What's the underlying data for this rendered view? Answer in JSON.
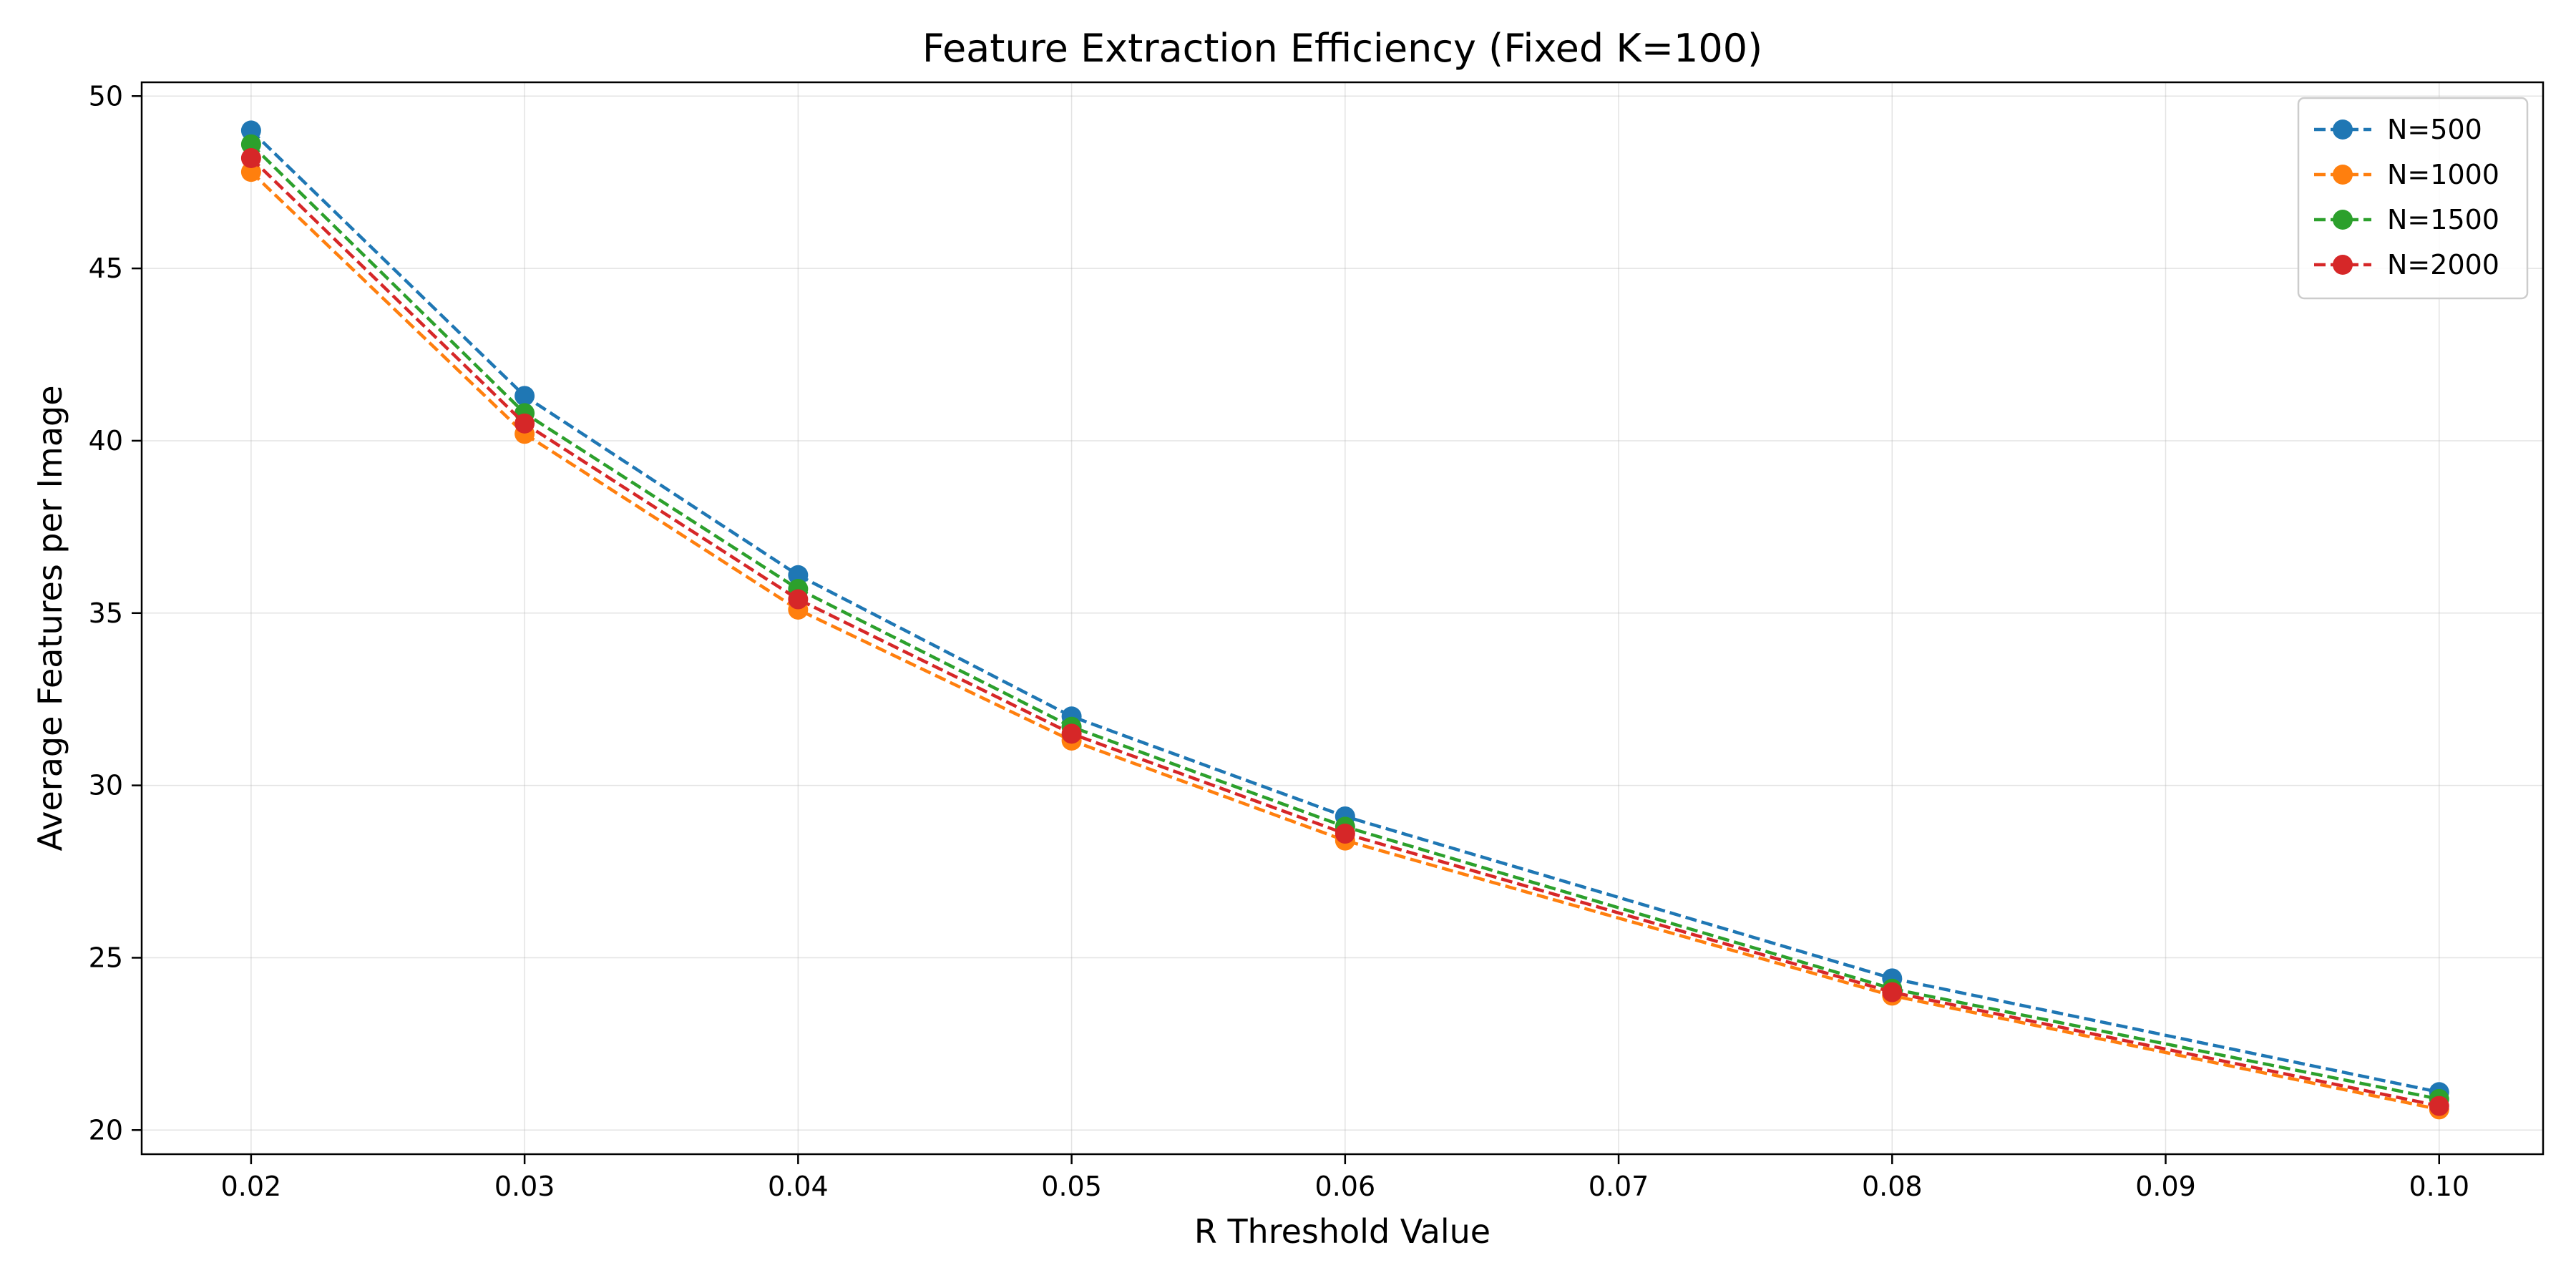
{
  "chart_data": {
    "type": "line",
    "title": "Feature Extraction Efficiency (Fixed K=100)",
    "xlabel": "R Threshold Value",
    "ylabel": "Average Features per Image",
    "xlim": [
      0.016,
      0.1038
    ],
    "ylim": [
      19.3,
      50.4
    ],
    "xticks": [
      0.02,
      0.03,
      0.04,
      0.05,
      0.06,
      0.07,
      0.08,
      0.09,
      0.1
    ],
    "xtick_labels": [
      "0.02",
      "0.03",
      "0.04",
      "0.05",
      "0.06",
      "0.07",
      "0.08",
      "0.09",
      "0.10"
    ],
    "yticks": [
      20,
      25,
      30,
      35,
      40,
      45,
      50
    ],
    "ytick_labels": [
      "20",
      "25",
      "30",
      "35",
      "40",
      "45",
      "50"
    ],
    "grid": true,
    "legend_position": "top-right",
    "x": [
      0.02,
      0.03,
      0.04,
      0.05,
      0.06,
      0.08,
      0.1
    ],
    "series": [
      {
        "name": "N=500",
        "color": "#1f77b4",
        "values": [
          49.0,
          41.3,
          36.1,
          32.0,
          29.1,
          24.4,
          21.1
        ]
      },
      {
        "name": "N=1000",
        "color": "#ff7f0e",
        "values": [
          47.8,
          40.2,
          35.1,
          31.3,
          28.4,
          23.9,
          20.6
        ]
      },
      {
        "name": "N=1500",
        "color": "#2ca02c",
        "values": [
          48.6,
          40.8,
          35.7,
          31.7,
          28.8,
          24.1,
          20.9
        ]
      },
      {
        "name": "N=2000",
        "color": "#d62728",
        "values": [
          48.2,
          40.5,
          35.4,
          31.5,
          28.6,
          24.0,
          20.7
        ]
      }
    ]
  }
}
